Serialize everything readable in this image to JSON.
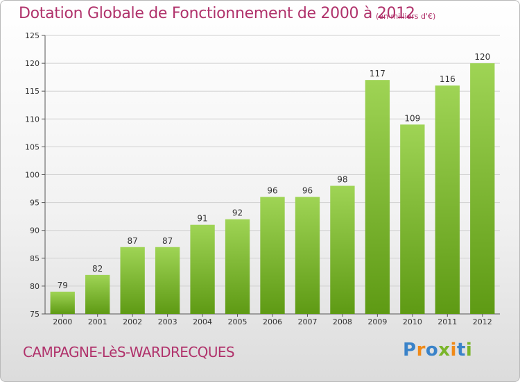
{
  "title": "Dotation Globale de Fonctionnement de 2000 à 2012",
  "unit": "(en milliers d'€)",
  "commune": "CAMPAGNE-LèS-WARDRECQUES",
  "logo": "Proxiti",
  "colors": {
    "title": "#b0326b",
    "bar_top": "#9fd455",
    "bar_bottom": "#5e9a14",
    "logo": [
      "#3a83c9",
      "#f08a18",
      "#3a83c9",
      "#7ab52a",
      "#f08a18",
      "#3a83c9",
      "#7ab52a"
    ]
  },
  "chart_data": {
    "type": "bar",
    "categories": [
      "2000",
      "2001",
      "2002",
      "2003",
      "2004",
      "2005",
      "2006",
      "2007",
      "2008",
      "2009",
      "2010",
      "2011",
      "2012"
    ],
    "values": [
      79,
      82,
      87,
      87,
      91,
      92,
      96,
      96,
      98,
      117,
      109,
      116,
      120
    ],
    "data_labels": [
      "79",
      "82",
      "87",
      "87",
      "91",
      "92",
      "96",
      "96",
      "98",
      "117",
      "109",
      "116",
      "120"
    ],
    "ylim": [
      75,
      125
    ],
    "yticks": [
      75,
      80,
      85,
      90,
      95,
      100,
      105,
      110,
      115,
      120,
      125
    ],
    "grid": true,
    "xlabel": "",
    "ylabel": ""
  }
}
